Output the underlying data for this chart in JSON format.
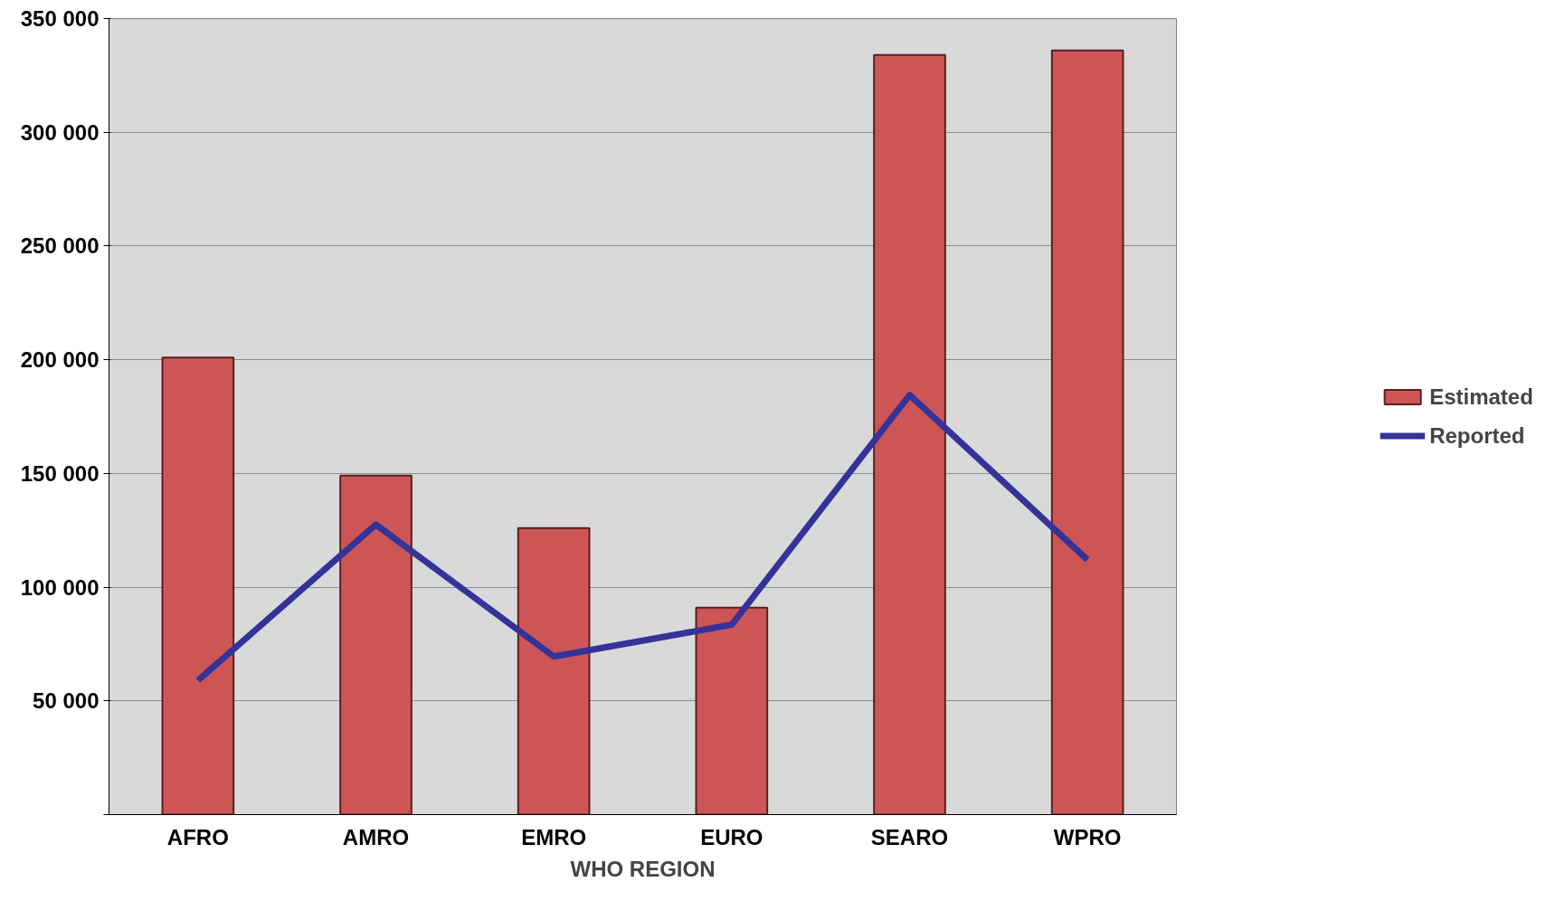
{
  "chart_data": {
    "type": "bar",
    "xlabel": "WHO REGION",
    "categories": [
      "AFRO",
      "AMRO",
      "EMRO",
      "EURO",
      "SEARO",
      "WPRO"
    ],
    "series": [
      {
        "name": "Estimated",
        "color": "#cd5555",
        "values": [
          201000,
          149000,
          126000,
          91000,
          334000,
          336000
        ]
      },
      {
        "name": "Reported",
        "type": "line",
        "color": "#333399",
        "values": [
          59000,
          127500,
          69500,
          83500,
          184500,
          112000
        ]
      }
    ],
    "ylim": [
      0,
      350000
    ],
    "yticks": [
      {
        "value": 0,
        "label": null
      },
      {
        "value": 50000,
        "label": "50 000"
      },
      {
        "value": 100000,
        "label": "100 000"
      },
      {
        "value": 150000,
        "label": "150 000"
      },
      {
        "value": 200000,
        "label": "200 000"
      },
      {
        "value": 250000,
        "label": "250 000"
      },
      {
        "value": 300000,
        "label": "300 000"
      },
      {
        "value": 350000,
        "label": "350 000"
      }
    ],
    "grid": "y",
    "legend": "right"
  }
}
